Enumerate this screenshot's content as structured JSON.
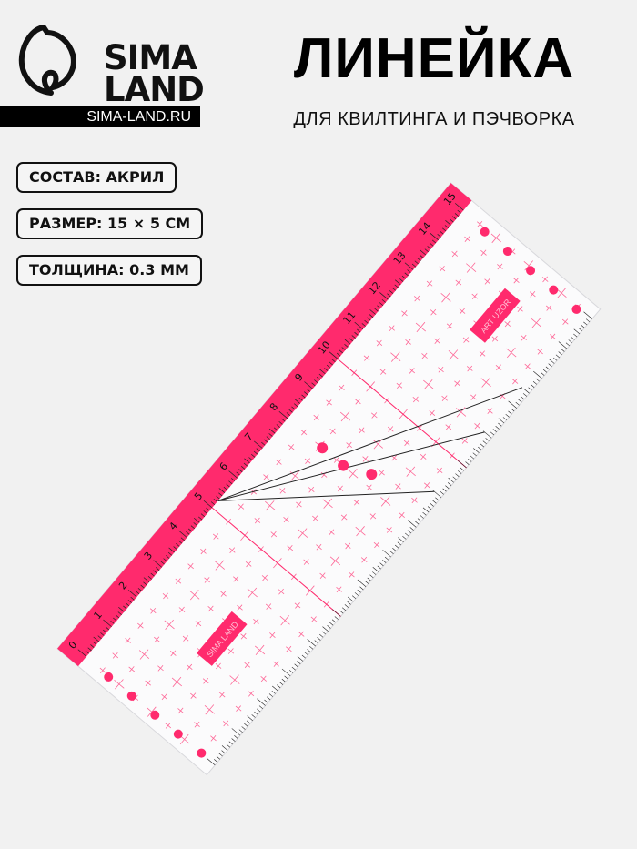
{
  "brand": {
    "logo_text_line1": "SIMA",
    "logo_text_line2": "LAND",
    "site": "SIMA-LAND.RU"
  },
  "title": "ЛИНЕЙКА",
  "subtitle": "ДЛЯ КВИЛТИНГА И ПЭЧВОРКА",
  "specs": [
    {
      "label": "СОСТАВ: АКРИЛ"
    },
    {
      "label": "РАЗМЕР: 15 × 5 СМ"
    },
    {
      "label": "ТОЛЩИНА: 0.3 ММ"
    }
  ],
  "ruler": {
    "scale_labels": [
      "0",
      "1",
      "2",
      "3",
      "4",
      "5",
      "6",
      "7",
      "8",
      "9",
      "10",
      "11",
      "12",
      "13",
      "14",
      "15"
    ],
    "label_left": "SIMA LAND",
    "label_right": "ART UZOR",
    "accent_color": "#ff2a6d"
  }
}
